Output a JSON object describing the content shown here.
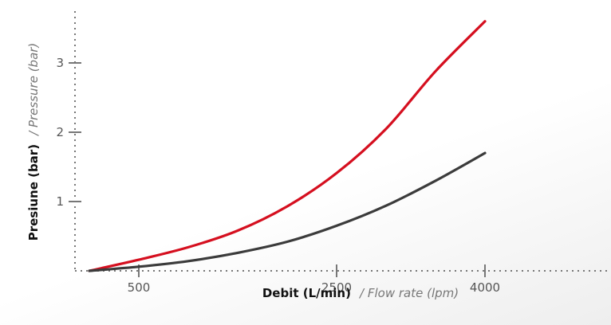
{
  "chart_data": {
    "type": "line",
    "xlabel_primary": "Debit (L/min)",
    "xlabel_secondary": "/ Flow rate (lpm)",
    "ylabel_primary": "Presiune (bar)",
    "ylabel_secondary": "/ Pressure (bar)",
    "x_ticks": [
      500,
      2500,
      4000
    ],
    "y_ticks": [
      1,
      2,
      3
    ],
    "xlim": [
      0,
      4000
    ],
    "ylim": [
      0,
      3.6
    ],
    "grid": false,
    "series": [
      {
        "color": "#d50f1f",
        "x": [
          0,
          500,
          1000,
          1500,
          2000,
          2500,
          3000,
          3500,
          4000
        ],
        "y": [
          0.0,
          0.16,
          0.34,
          0.58,
          0.93,
          1.41,
          2.05,
          2.88,
          3.6
        ]
      },
      {
        "color": "#3b3b3b",
        "x": [
          0,
          500,
          1000,
          1500,
          2000,
          2500,
          3000,
          3500,
          4000
        ],
        "y": [
          0.0,
          0.06,
          0.14,
          0.26,
          0.42,
          0.65,
          0.94,
          1.3,
          1.7
        ]
      }
    ]
  }
}
